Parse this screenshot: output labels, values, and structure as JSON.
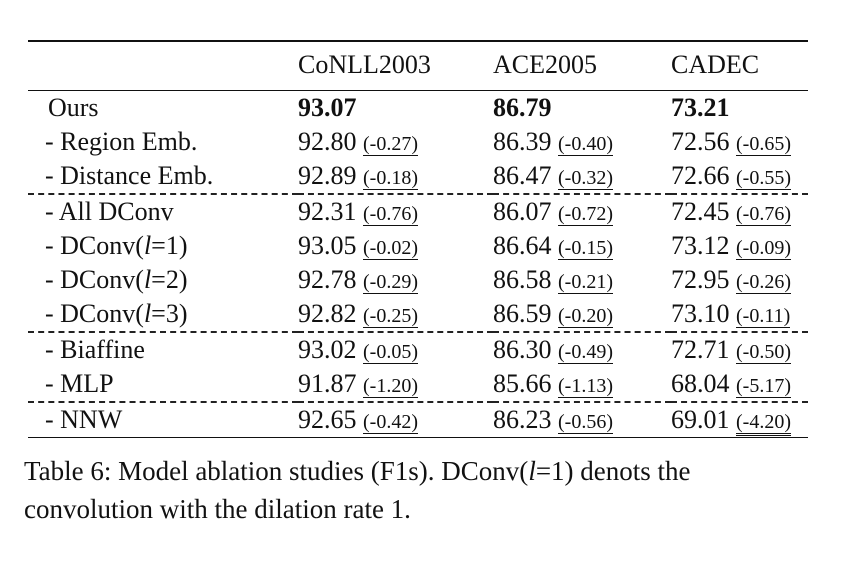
{
  "table": {
    "columns": [
      "",
      "CoNLL2003",
      "ACE2005",
      "CADEC"
    ],
    "top_row": {
      "label": "Ours",
      "values": [
        "93.07",
        "86.79",
        "73.21"
      ]
    },
    "rows": [
      {
        "label": "- Region Emb.",
        "group_start": false,
        "cells": [
          {
            "v": "92.80",
            "d": "(-0.27)"
          },
          {
            "v": "86.39",
            "d": "(-0.40)"
          },
          {
            "v": "72.56",
            "d": "(-0.65)"
          }
        ]
      },
      {
        "label": "- Distance Emb.",
        "group_start": false,
        "cells": [
          {
            "v": "92.89",
            "d": "(-0.18)"
          },
          {
            "v": "86.47",
            "d": "(-0.32)"
          },
          {
            "v": "72.66",
            "d": "(-0.55)"
          }
        ]
      },
      {
        "label": "- All DConv",
        "group_start": true,
        "cells": [
          {
            "v": "92.31",
            "d": "(-0.76)"
          },
          {
            "v": "86.07",
            "d": "(-0.72)"
          },
          {
            "v": "72.45",
            "d": "(-0.76)"
          }
        ]
      },
      {
        "label": "- DConv(l=1)",
        "group_start": false,
        "cells": [
          {
            "v": "93.05",
            "d": "(-0.02)"
          },
          {
            "v": "86.64",
            "d": "(-0.15)"
          },
          {
            "v": "73.12",
            "d": "(-0.09)"
          }
        ]
      },
      {
        "label": "- DConv(l=2)",
        "group_start": false,
        "cells": [
          {
            "v": "92.78",
            "d": "(-0.29)"
          },
          {
            "v": "86.58",
            "d": "(-0.21)"
          },
          {
            "v": "72.95",
            "d": "(-0.26)"
          }
        ]
      },
      {
        "label": "- DConv(l=3)",
        "group_start": false,
        "cells": [
          {
            "v": "92.82",
            "d": "(-0.25)"
          },
          {
            "v": "86.59",
            "d": "(-0.20)"
          },
          {
            "v": "73.10",
            "d": "(-0.11)"
          }
        ]
      },
      {
        "label": "- Biaffine",
        "group_start": true,
        "cells": [
          {
            "v": "93.02",
            "d": "(-0.05)"
          },
          {
            "v": "86.30",
            "d": "(-0.49)"
          },
          {
            "v": "72.71",
            "d": "(-0.50)"
          }
        ]
      },
      {
        "label": "- MLP",
        "group_start": false,
        "cells": [
          {
            "v": "91.87",
            "d": "(-1.20)"
          },
          {
            "v": "85.66",
            "d": "(-1.13)"
          },
          {
            "v": "68.04",
            "d": "(-5.17)"
          }
        ]
      },
      {
        "label": "- NNW",
        "group_start": true,
        "cells": [
          {
            "v": "92.65",
            "d": "(-0.42)"
          },
          {
            "v": "86.23",
            "d": "(-0.56)"
          },
          {
            "v": "69.01",
            "d": "(-4.20)",
            "double": true
          }
        ]
      }
    ]
  },
  "caption": "Table 6: Model ablation studies (F1s). DConv(l=1) denots the convolution with the dilation rate 1."
}
